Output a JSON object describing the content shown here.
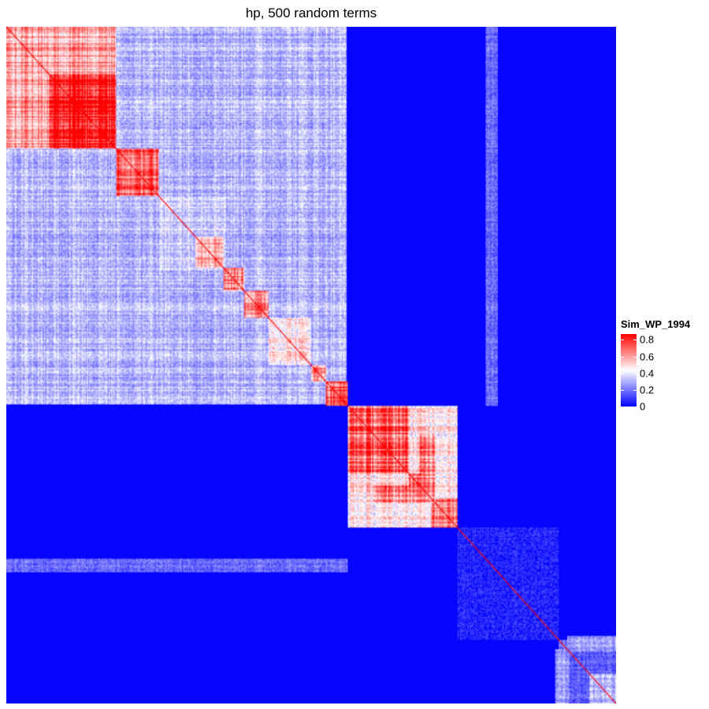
{
  "chart_data": {
    "type": "heatmap",
    "title": "hp, 500 random terms",
    "n_terms": 500,
    "matrix": "symmetric term-by-term similarity matrix, rows and columns in the same clustered order",
    "value_range": [
      0,
      0.87
    ],
    "colors": {
      "low": "#0000FF",
      "mid": "#FFFFFF",
      "high": "#FF0000"
    },
    "color_stops": [
      0,
      0.4,
      0.8
    ],
    "legend": {
      "title": "Sim_WP_1994",
      "ticks": [
        0,
        0.2,
        0.4,
        0.6,
        0.8
      ],
      "placement": "right"
    },
    "blocks": [
      {
        "from": 0,
        "to": 279,
        "level": 0.3
      },
      {
        "from": 0,
        "to": 90,
        "level": 0.55
      },
      {
        "from": 35,
        "to": 90,
        "level": 0.8
      },
      {
        "from": 90,
        "to": 125,
        "level": 0.68
      },
      {
        "from": 125,
        "to": 180,
        "level": 0.35
      },
      {
        "from": 155,
        "to": 178,
        "level": 0.6
      },
      {
        "from": 178,
        "to": 195,
        "level": 0.6
      },
      {
        "from": 195,
        "to": 215,
        "level": 0.6
      },
      {
        "from": 215,
        "to": 250,
        "level": 0.45
      },
      {
        "from": 250,
        "to": 262,
        "level": 0.6
      },
      {
        "from": 262,
        "to": 280,
        "level": 0.65
      },
      {
        "from": 280,
        "to": 370,
        "level": 0.45
      },
      {
        "from": 280,
        "to": 330,
        "level": 0.65
      },
      {
        "from": 330,
        "to": 352,
        "level": 0.65
      },
      {
        "from": 348,
        "to": 370,
        "level": 0.68
      },
      {
        "from": 370,
        "to": 453,
        "level": 0.06
      },
      {
        "from": 453,
        "to": 500,
        "level": 0.22
      },
      {
        "from": 453,
        "to": 478,
        "level": 0.62
      },
      {
        "from": 478,
        "to": 500,
        "level": 0.3
      }
    ],
    "off_diagonal": [
      {
        "rows": [
          0,
          280
        ],
        "cols": [
          393,
          403
        ],
        "level": 0.18
      },
      {
        "rows": [
          453,
          500
        ],
        "cols": [
          453,
          478
        ],
        "level": 0.15
      },
      {
        "rows": [
          339,
          352
        ],
        "cols": [
          301,
          351
        ],
        "level": 0.6
      },
      {
        "rows": [
          450,
          462
        ],
        "cols": [
          460,
          500
        ],
        "level": 0.25
      }
    ]
  }
}
